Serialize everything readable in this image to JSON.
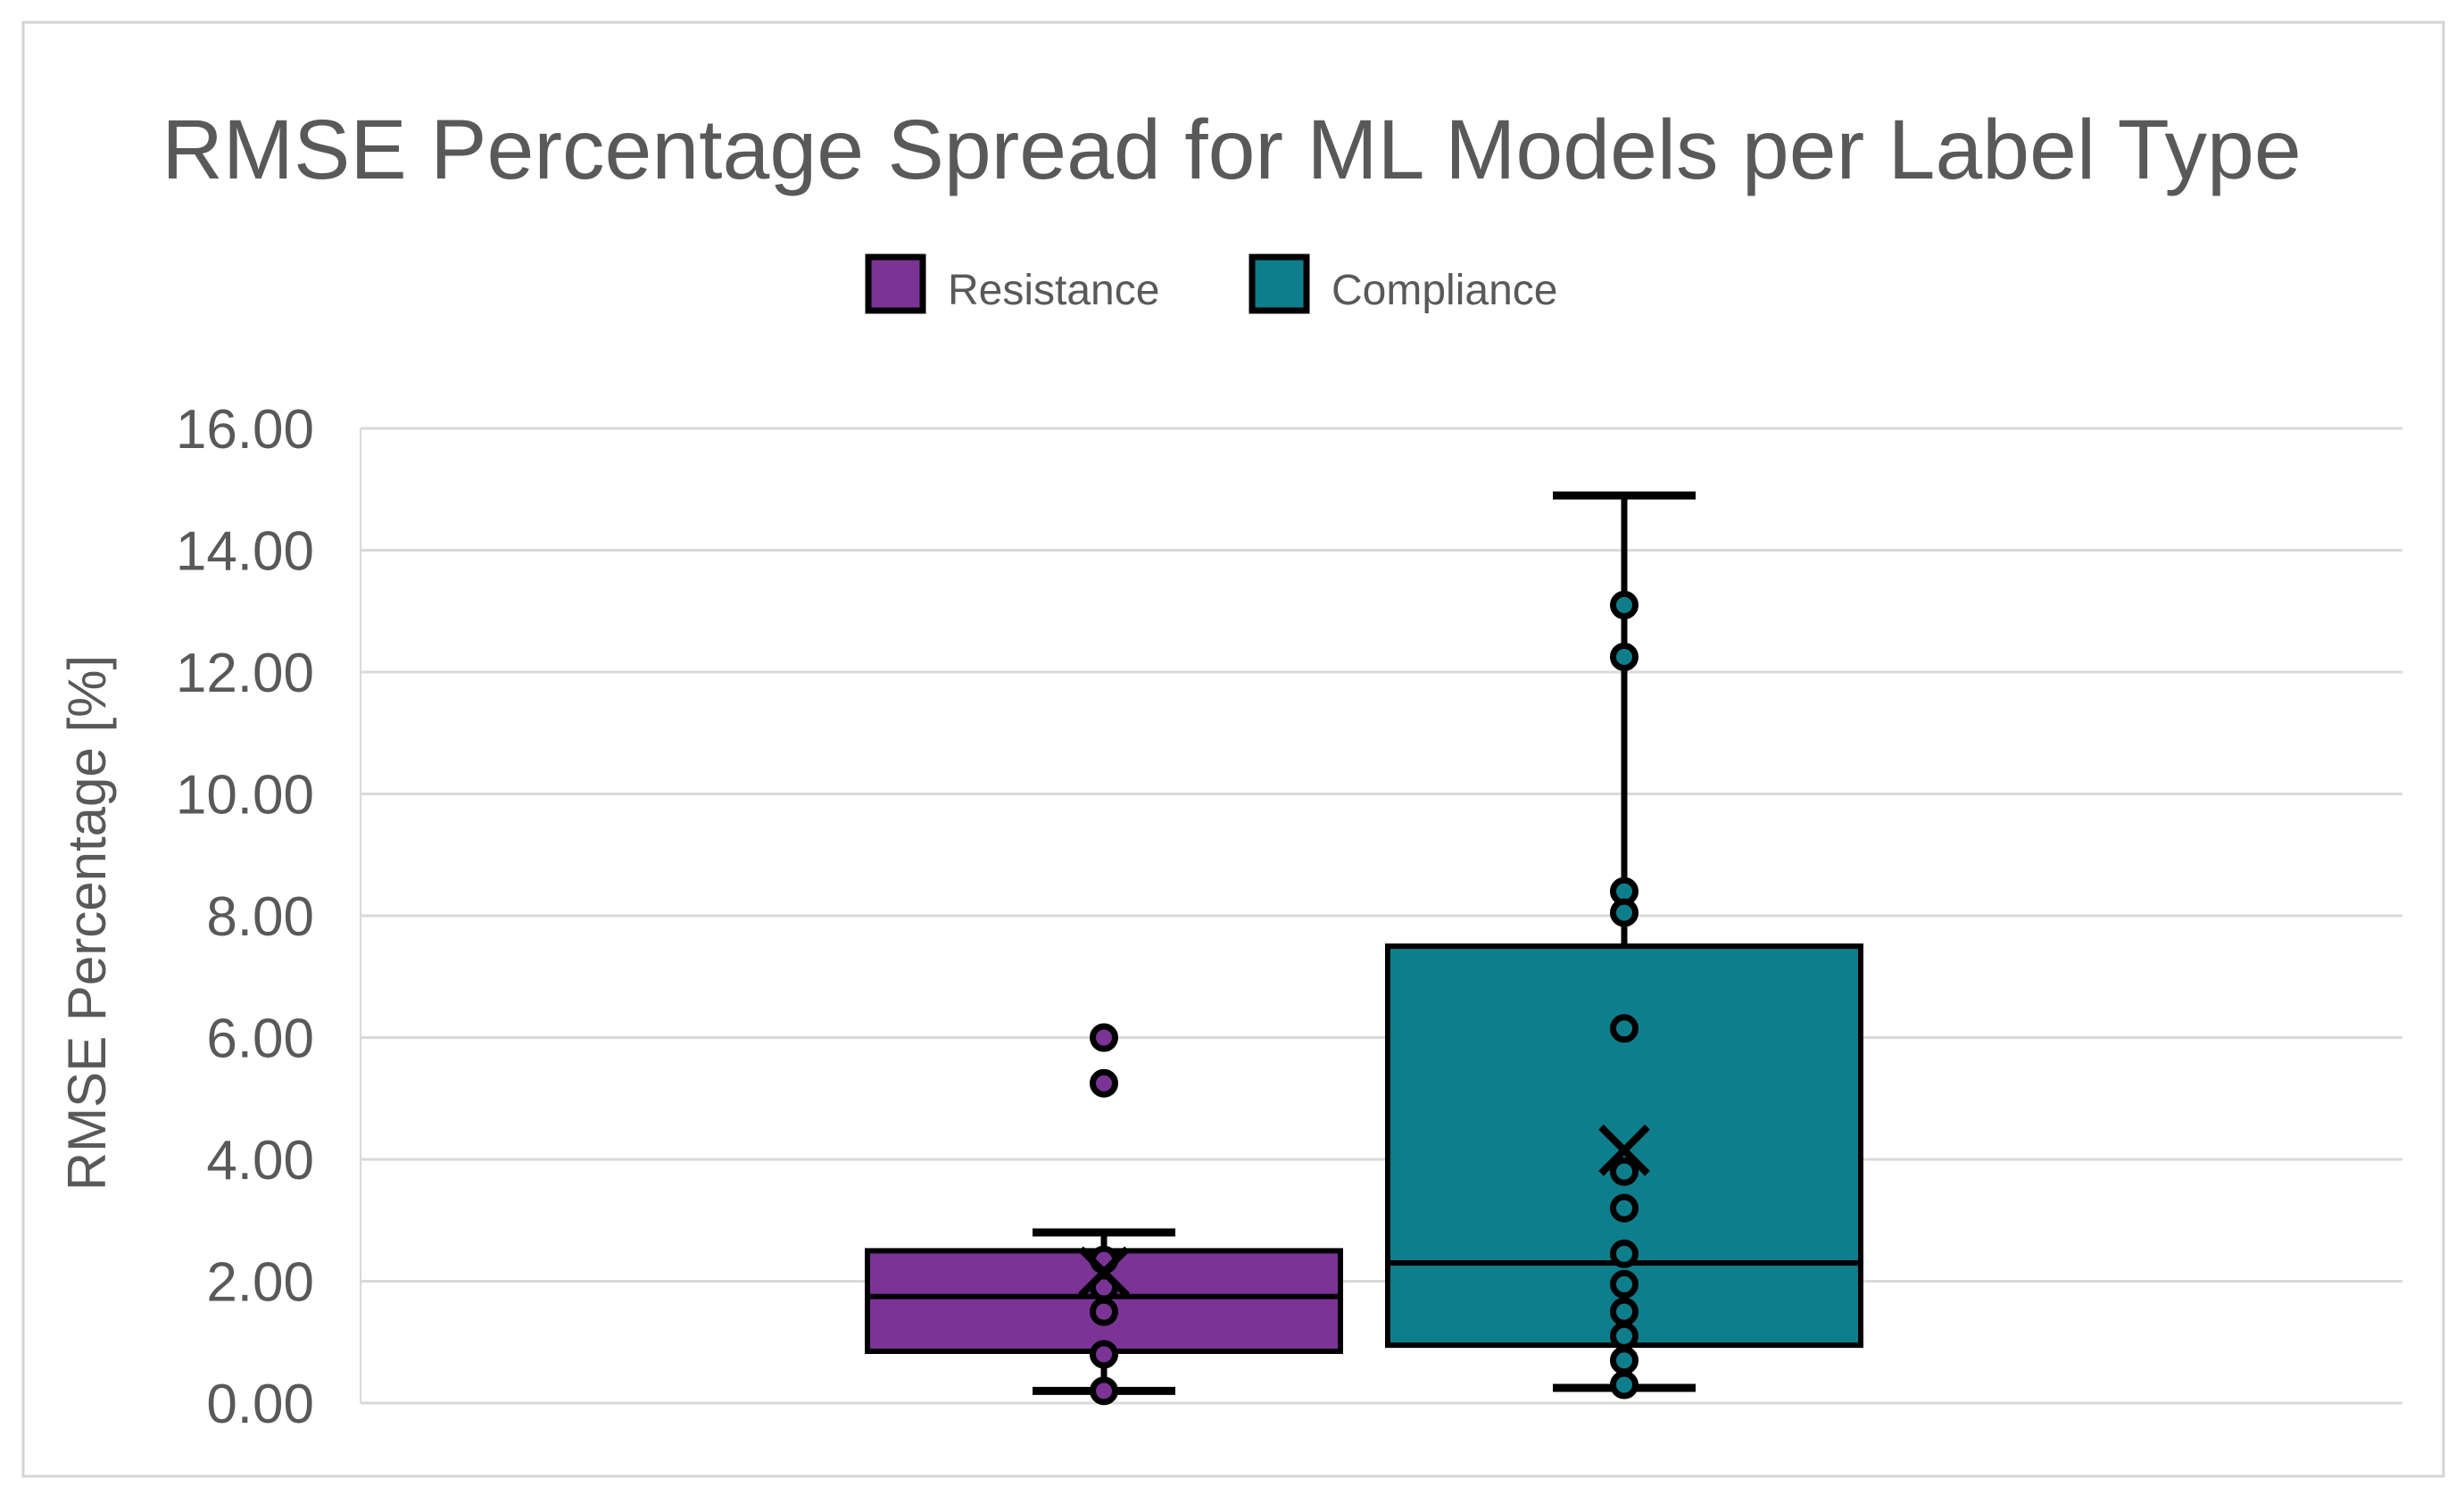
{
  "window": {
    "background": "#FFFFFF",
    "border_color": "#D4D4D4"
  },
  "title": {
    "text": "RMSE Percentage Spread for ML Models per Label Type",
    "color": "#595959"
  },
  "legend": {
    "text_color": "#595959",
    "items": [
      {
        "label": "Resistance",
        "color": "#7B3496"
      },
      {
        "label": "Compliance",
        "color": "#0F7E8C"
      }
    ]
  },
  "y_axis": {
    "title": "RMSE Percentage [%]",
    "min": 0,
    "max": 16,
    "step": 2,
    "tick_labels": [
      "0.00",
      "2.00",
      "4.00",
      "6.00",
      "8.00",
      "10.00",
      "12.00",
      "14.00",
      "16.00"
    ],
    "text_color": "#595959",
    "gridline_color": "#D9D9D9"
  },
  "chart_data": {
    "type": "boxplot",
    "title": "RMSE Percentage Spread for ML Models per Label Type",
    "xlabel": "",
    "ylabel": "RMSE Percentage [%]",
    "ylim": [
      0,
      16
    ],
    "grid": true,
    "legend_position": "top",
    "categories": [
      "Resistance",
      "Compliance"
    ],
    "series": [
      {
        "name": "Resistance",
        "color": "#7B3496",
        "whisker_low": 0.2,
        "q1": 0.85,
        "median": 1.75,
        "q3": 2.5,
        "whisker_high": 2.8,
        "mean": 2.15,
        "outliers": [
          6.0,
          5.25
        ],
        "points": [
          6.0,
          5.25,
          2.35,
          1.9,
          1.5,
          0.8,
          0.2
        ]
      },
      {
        "name": "Compliance",
        "color": "#0F7E8C",
        "whisker_low": 0.25,
        "q1": 0.95,
        "median": 2.3,
        "q3": 7.5,
        "whisker_high": 14.9,
        "mean": 4.15,
        "outliers": [],
        "points": [
          13.1,
          12.25,
          8.4,
          8.05,
          6.15,
          3.8,
          3.2,
          2.45,
          1.95,
          1.5,
          1.1,
          0.7,
          0.3
        ]
      }
    ]
  }
}
